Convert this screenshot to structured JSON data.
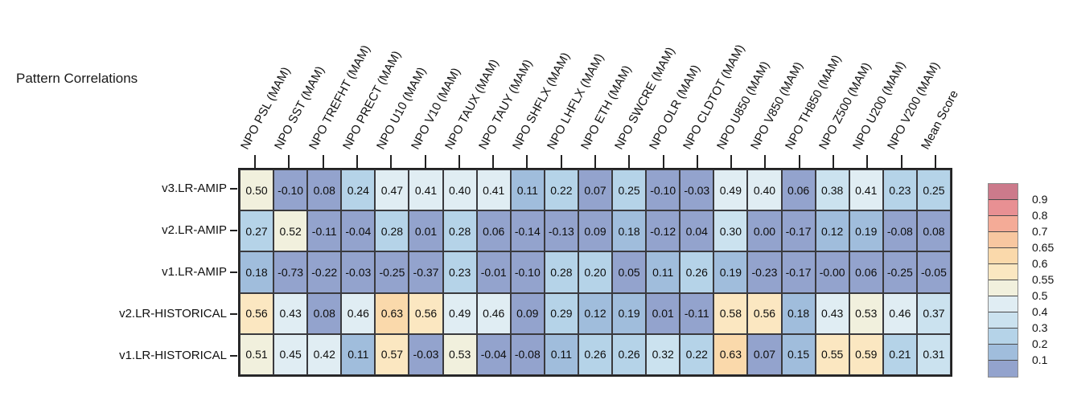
{
  "title": "Pattern Correlations",
  "chart_data": {
    "type": "heatmap",
    "title": "Pattern Correlations",
    "columns": [
      "NPO PSL (MAM)",
      "NPO SST (MAM)",
      "NPO TREFHT (MAM)",
      "NPO PRECT (MAM)",
      "NPO U10 (MAM)",
      "NPO V10 (MAM)",
      "NPO TAUX (MAM)",
      "NPO TAUY (MAM)",
      "NPO SHFLX (MAM)",
      "NPO LHFLX (MAM)",
      "NPO ETH (MAM)",
      "NPO SWCRE (MAM)",
      "NPO OLR (MAM)",
      "NPO CLDTOT (MAM)",
      "NPO U850 (MAM)",
      "NPO V850 (MAM)",
      "NPO TH850 (MAM)",
      "NPO Z500 (MAM)",
      "NPO U200 (MAM)",
      "NPO V200 (MAM)",
      "Mean Score"
    ],
    "rows": [
      "v3.LR-AMIP",
      "v2.LR-AMIP",
      "v1.LR-AMIP",
      "v2.LR-HISTORICAL",
      "v1.LR-HISTORICAL"
    ],
    "values": [
      [
        "0.50",
        "-0.10",
        "0.08",
        "0.24",
        "0.47",
        "0.41",
        "0.40",
        "0.41",
        "0.11",
        "0.22",
        "0.07",
        "0.25",
        "-0.10",
        "-0.03",
        "0.49",
        "0.40",
        "0.06",
        "0.38",
        "0.41",
        "0.23",
        "0.25"
      ],
      [
        "0.27",
        "0.52",
        "-0.11",
        "-0.04",
        "0.28",
        "0.01",
        "0.28",
        "0.06",
        "-0.14",
        "-0.13",
        "0.09",
        "0.18",
        "-0.12",
        "0.04",
        "0.30",
        "0.00",
        "-0.17",
        "0.12",
        "0.19",
        "-0.08",
        "0.08"
      ],
      [
        "0.18",
        "-0.73",
        "-0.22",
        "-0.03",
        "-0.25",
        "-0.37",
        "0.23",
        "-0.01",
        "-0.10",
        "0.28",
        "0.20",
        "0.05",
        "0.11",
        "0.26",
        "0.19",
        "-0.23",
        "-0.17",
        "-0.00",
        "0.06",
        "-0.25",
        "-0.05"
      ],
      [
        "0.56",
        "0.43",
        "0.08",
        "0.46",
        "0.63",
        "0.56",
        "0.49",
        "0.46",
        "0.09",
        "0.29",
        "0.12",
        "0.19",
        "0.01",
        "-0.11",
        "0.58",
        "0.56",
        "0.18",
        "0.43",
        "0.53",
        "0.46",
        "0.37"
      ],
      [
        "0.51",
        "0.45",
        "0.42",
        "0.11",
        "0.57",
        "-0.03",
        "0.53",
        "-0.04",
        "-0.08",
        "0.11",
        "0.26",
        "0.26",
        "0.32",
        "0.22",
        "0.63",
        "0.07",
        "0.15",
        "0.55",
        "0.59",
        "0.21",
        "0.31"
      ]
    ],
    "legend": {
      "position": "right",
      "tick_labels": [
        "0.9",
        "0.8",
        "0.7",
        "0.65",
        "0.6",
        "0.55",
        "0.5",
        "0.4",
        "0.3",
        "0.2",
        "0.1"
      ],
      "thresholds": [
        0.9,
        0.8,
        0.7,
        0.65,
        0.6,
        0.55,
        0.5,
        0.4,
        0.3,
        0.2,
        0.1
      ],
      "colors": [
        "#cc7a8b",
        "#e89093",
        "#f4ab97",
        "#f8c7a0",
        "#fad9ab",
        "#fbe7c1",
        "#f1f0dd",
        "#e0edf3",
        "#cbe2ef",
        "#b5d3e8",
        "#a0bddc",
        "#93a3cd"
      ]
    },
    "grid": true,
    "border_color": "#222222"
  }
}
